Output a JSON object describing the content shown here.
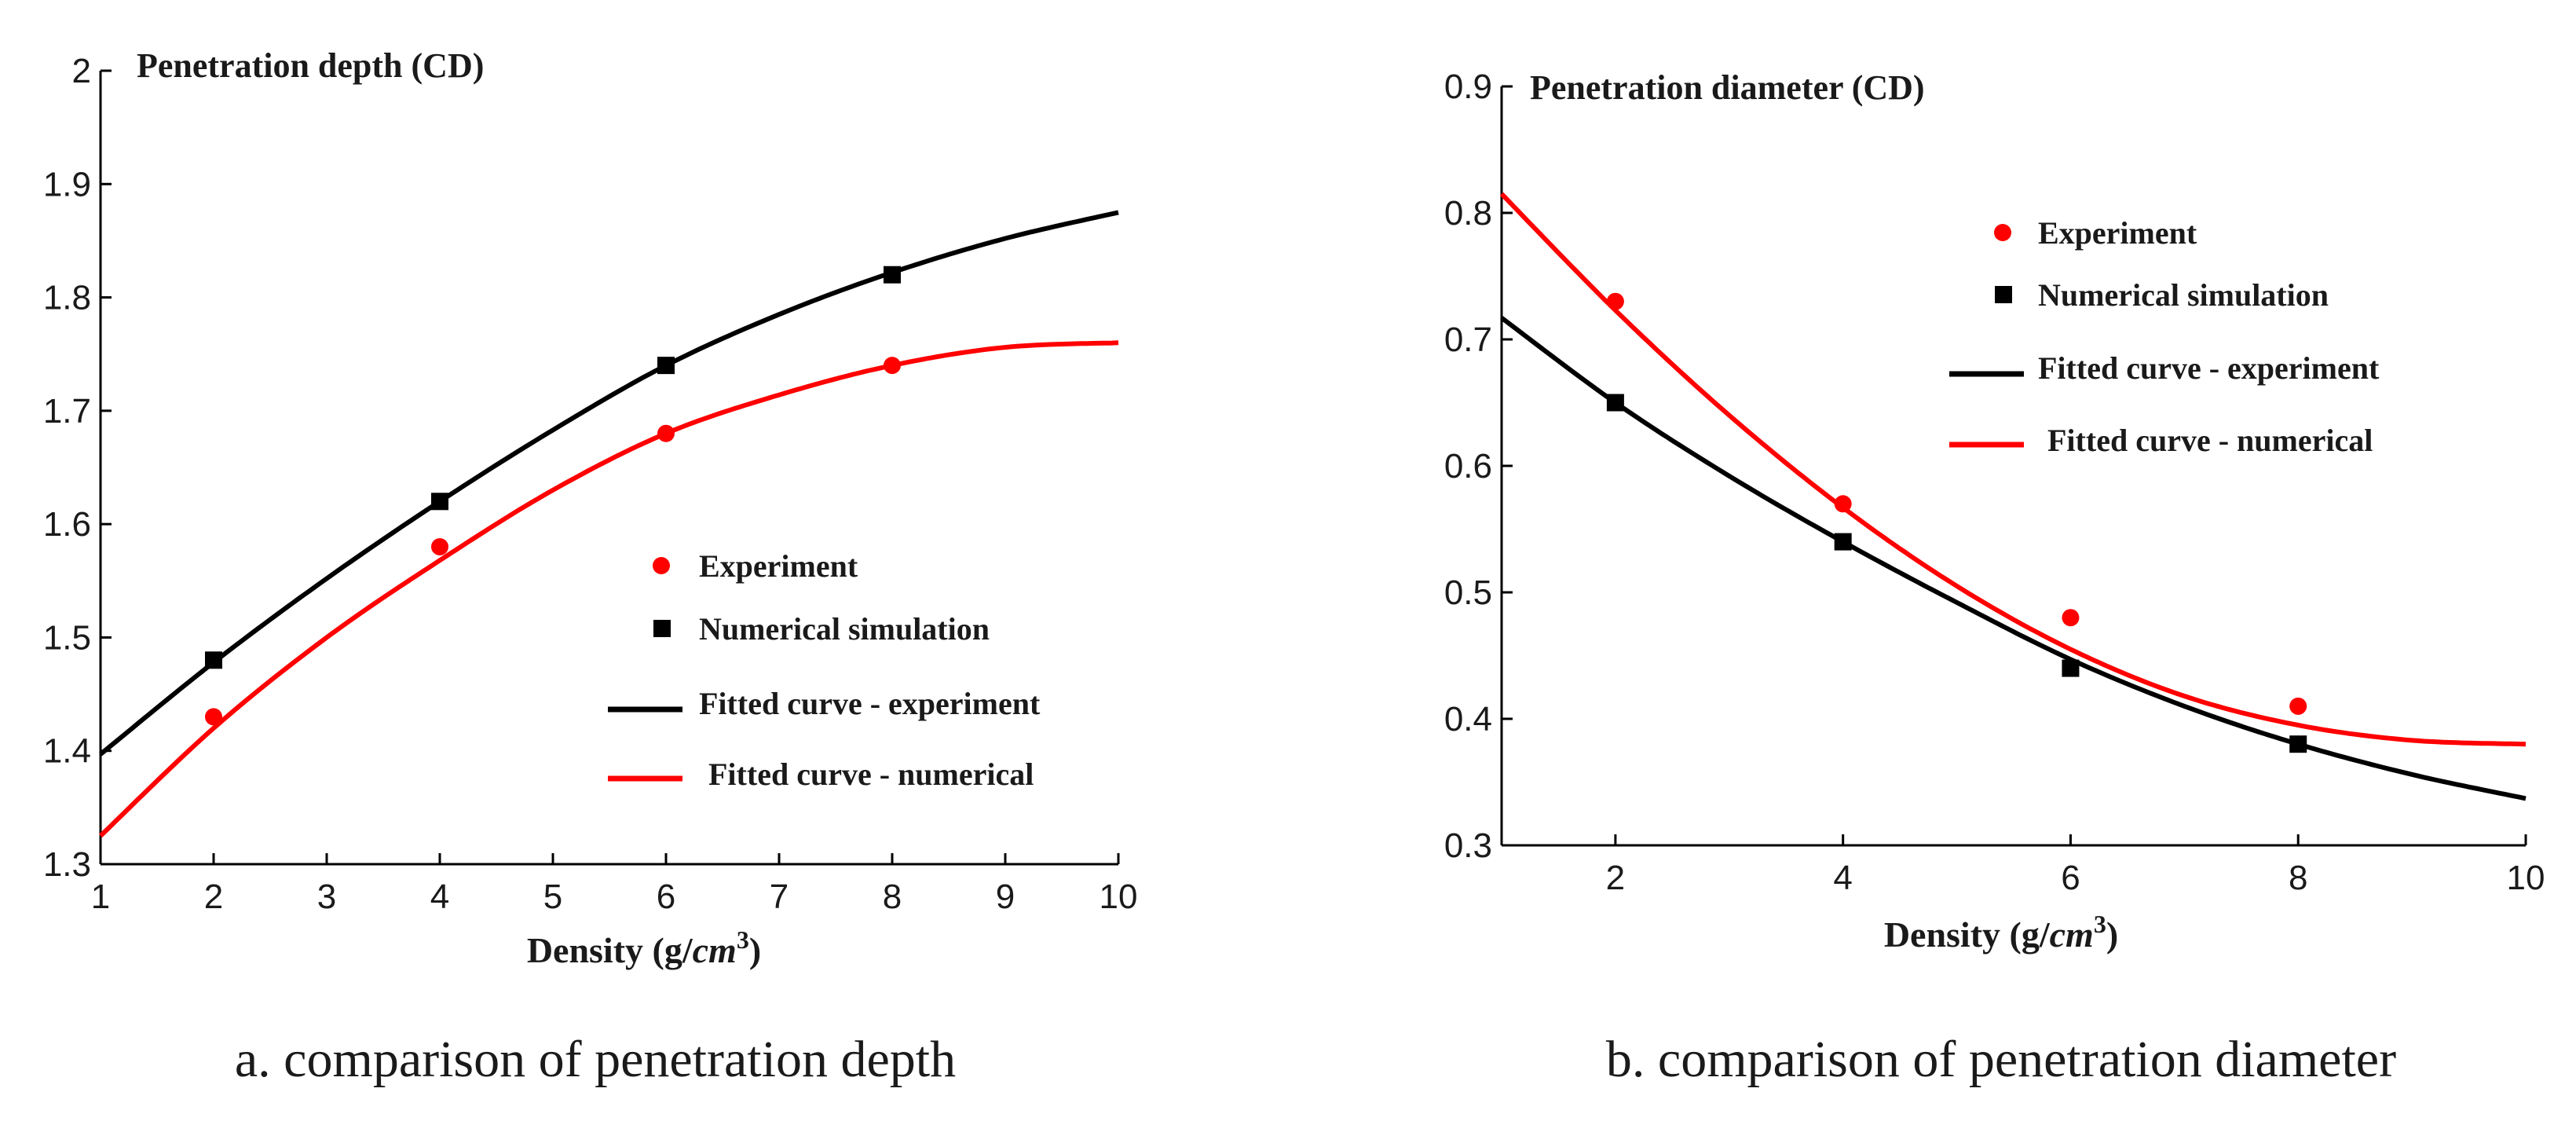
{
  "colors": {
    "experiment": "#ff0000",
    "numerical": "#000000"
  },
  "chart_data": [
    {
      "type": "scatter",
      "panel": "a",
      "title": "Penetration depth (CD)",
      "xlabel": "Density (g/",
      "xlabel_unit": "cm",
      "xlabel_exp": "3",
      "xlabel_close": ")",
      "caption": "a. comparison of penetration depth",
      "xlim": [
        1,
        10
      ],
      "ylim": [
        1.3,
        2.0
      ],
      "xticks": [
        1,
        2,
        3,
        4,
        5,
        6,
        7,
        8,
        9,
        10
      ],
      "yticks": [
        1.3,
        1.4,
        1.5,
        1.6,
        1.7,
        1.8,
        1.9,
        2
      ],
      "xtick_labels": [
        "1",
        "2",
        "3",
        "4",
        "5",
        "6",
        "7",
        "8",
        "9",
        "10"
      ],
      "ytick_labels": [
        "1.3",
        "1.4",
        "1.5",
        "1.6",
        "1.7",
        "1.8",
        "1.9",
        "2"
      ],
      "series": [
        {
          "name": "Experiment",
          "kind": "points",
          "marker": "circle",
          "color": "#ff0000",
          "x": [
            2,
            4,
            6,
            8
          ],
          "y": [
            1.43,
            1.58,
            1.68,
            1.74
          ]
        },
        {
          "name": "Numerical simulation",
          "kind": "points",
          "marker": "square",
          "color": "#000000",
          "x": [
            2,
            4,
            6,
            8
          ],
          "y": [
            1.48,
            1.62,
            1.74,
            1.82
          ]
        },
        {
          "name": "Fitted curve - experiment",
          "kind": "line",
          "color": "#000000",
          "x": [
            1,
            2,
            3,
            4,
            5,
            6,
            7,
            8,
            9,
            10
          ],
          "y": [
            1.397,
            1.478,
            1.552,
            1.62,
            1.683,
            1.74,
            1.785,
            1.822,
            1.852,
            1.875
          ]
        },
        {
          "name": "Fitted curve - numerical",
          "kind": "line",
          "color": "#ff0000",
          "x": [
            1,
            2,
            3,
            4,
            5,
            6,
            7,
            8,
            9,
            10
          ],
          "y": [
            1.325,
            1.42,
            1.5,
            1.568,
            1.63,
            1.68,
            1.714,
            1.74,
            1.756,
            1.76
          ]
        }
      ],
      "legend": {
        "position": "center-right",
        "entries": [
          "Experiment",
          "Numerical simulation",
          "Fitted curve - experiment",
          "Fitted curve - numerical"
        ]
      }
    },
    {
      "type": "scatter",
      "panel": "b",
      "title": "Penetration diameter (CD)",
      "xlabel": "Density (g/",
      "xlabel_unit": "cm",
      "xlabel_exp": "3",
      "xlabel_close": ")",
      "caption": "b. comparison of penetration diameter",
      "xlim": [
        1,
        10
      ],
      "ylim": [
        0.3,
        0.9
      ],
      "xticks": [
        2,
        4,
        6,
        8,
        10
      ],
      "yticks": [
        0.3,
        0.4,
        0.5,
        0.6,
        0.7,
        0.8,
        0.9
      ],
      "xtick_labels": [
        "2",
        "4",
        "6",
        "8",
        "10"
      ],
      "ytick_labels": [
        "0.3",
        "0.4",
        "0.5",
        "0.6",
        "0.7",
        "0.8",
        "0.9"
      ],
      "series": [
        {
          "name": "Experiment",
          "kind": "points",
          "marker": "circle",
          "color": "#ff0000",
          "x": [
            2,
            4,
            6,
            8
          ],
          "y": [
            0.73,
            0.57,
            0.48,
            0.41
          ]
        },
        {
          "name": "Numerical simulation",
          "kind": "points",
          "marker": "square",
          "color": "#000000",
          "x": [
            2,
            4,
            6,
            8
          ],
          "y": [
            0.65,
            0.54,
            0.44,
            0.38
          ]
        },
        {
          "name": "Fitted curve - experiment",
          "kind": "line",
          "color": "#000000",
          "x": [
            1,
            2,
            3,
            4,
            5,
            6,
            7,
            8,
            9,
            10
          ],
          "y": [
            0.717,
            0.65,
            0.592,
            0.54,
            0.492,
            0.447,
            0.41,
            0.38,
            0.356,
            0.337
          ]
        },
        {
          "name": "Fitted curve - numerical",
          "kind": "line",
          "color": "#ff0000",
          "x": [
            1,
            2,
            3,
            4,
            5,
            6,
            7,
            8,
            9,
            10
          ],
          "y": [
            0.815,
            0.723,
            0.64,
            0.567,
            0.505,
            0.455,
            0.418,
            0.395,
            0.383,
            0.38
          ]
        }
      ],
      "legend": {
        "position": "top-right",
        "entries": [
          "Experiment",
          "Numerical simulation",
          "Fitted curve - experiment",
          "Fitted curve - numerical"
        ]
      }
    }
  ]
}
